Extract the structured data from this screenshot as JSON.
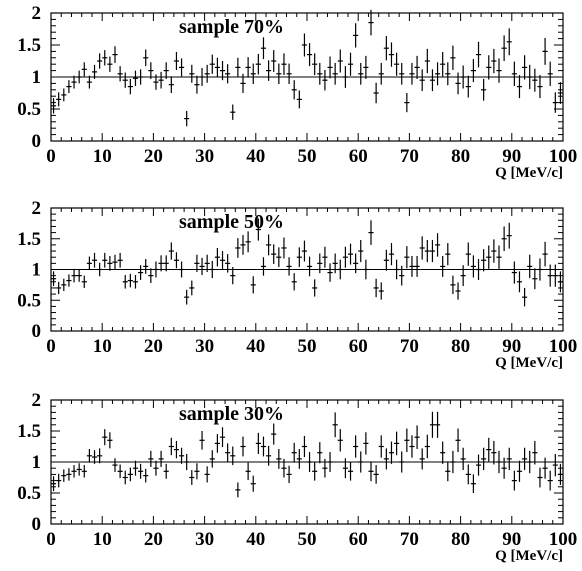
{
  "chart_data": [
    {
      "type": "scatter",
      "title": "sample 70%",
      "xlabel": "Q [MeV/c]",
      "ylabel": "",
      "xlim": [
        0,
        100
      ],
      "ylim": [
        0,
        2
      ],
      "xticks": [
        "0",
        "10",
        "20",
        "30",
        "40",
        "50",
        "60",
        "70",
        "80",
        "90",
        "100"
      ],
      "yticks": [
        "0",
        "0.5",
        "1",
        "1.5",
        "2"
      ],
      "reference_line": 1,
      "grid": false,
      "x": [
        0.5,
        1.5,
        2.5,
        3.5,
        4.5,
        5.5,
        6.5,
        7.5,
        8.5,
        9.5,
        10.5,
        11.5,
        12.5,
        13.5,
        14.5,
        15.5,
        16.5,
        17.5,
        18.5,
        19.5,
        20.5,
        21.5,
        22.5,
        23.5,
        24.5,
        25.5,
        26.5,
        27.5,
        28.5,
        29.5,
        30.5,
        31.5,
        32.5,
        33.5,
        34.5,
        35.5,
        36.5,
        37.5,
        38.5,
        39.5,
        40.5,
        41.5,
        42.5,
        43.5,
        44.5,
        45.5,
        46.5,
        47.5,
        48.5,
        49.5,
        50.5,
        51.5,
        52.5,
        53.5,
        54.5,
        55.5,
        56.5,
        57.5,
        58.5,
        59.5,
        60.5,
        61.5,
        62.5,
        63.5,
        64.5,
        65.5,
        66.5,
        67.5,
        68.5,
        69.5,
        70.5,
        71.5,
        72.5,
        73.5,
        74.5,
        75.5,
        76.5,
        77.5,
        78.5,
        79.5,
        80.5,
        81.5,
        82.5,
        83.5,
        84.5,
        85.5,
        86.5,
        87.5,
        88.5,
        89.5,
        90.5,
        91.5,
        92.5,
        93.5,
        94.5,
        95.5,
        96.5,
        97.5,
        98.5,
        99.5
      ],
      "y": [
        0.55,
        0.65,
        0.72,
        0.85,
        0.92,
        1.0,
        1.12,
        0.92,
        1.08,
        1.25,
        1.3,
        1.2,
        1.35,
        1.05,
        0.95,
        0.85,
        0.98,
        1.0,
        1.3,
        1.1,
        0.92,
        0.95,
        1.1,
        0.88,
        1.25,
        1.15,
        0.35,
        1.05,
        0.88,
        1.0,
        1.05,
        1.2,
        1.15,
        1.1,
        1.05,
        0.45,
        1.15,
        0.9,
        1.15,
        1.05,
        1.2,
        1.45,
        1.1,
        1.25,
        1.05,
        1.2,
        1.05,
        0.8,
        0.65,
        1.5,
        1.35,
        1.2,
        1.05,
        0.95,
        1.15,
        1.05,
        1.25,
        1.0,
        1.2,
        1.65,
        1.05,
        1.15,
        1.85,
        0.75,
        1.05,
        1.45,
        1.35,
        1.2,
        1.05,
        0.6,
        1.05,
        1.15,
        0.95,
        1.25,
        0.95,
        1.05,
        1.2,
        1.05,
        1.3,
        0.9,
        1.0,
        0.85,
        1.1,
        1.35,
        0.8,
        1.15,
        1.25,
        1.1,
        1.45,
        1.55,
        1.05,
        0.85,
        1.15,
        1.0,
        0.95,
        0.85,
        1.4,
        1.05,
        0.6,
        0.75
      ],
      "yerr": [
        0.12,
        0.11,
        0.1,
        0.1,
        0.1,
        0.1,
        0.11,
        0.1,
        0.11,
        0.12,
        0.12,
        0.12,
        0.13,
        0.12,
        0.12,
        0.12,
        0.12,
        0.12,
        0.13,
        0.13,
        0.12,
        0.13,
        0.13,
        0.13,
        0.14,
        0.14,
        0.12,
        0.14,
        0.14,
        0.14,
        0.14,
        0.15,
        0.15,
        0.15,
        0.15,
        0.12,
        0.15,
        0.15,
        0.16,
        0.16,
        0.16,
        0.17,
        0.16,
        0.17,
        0.16,
        0.17,
        0.16,
        0.15,
        0.14,
        0.18,
        0.18,
        0.17,
        0.17,
        0.16,
        0.17,
        0.17,
        0.18,
        0.17,
        0.18,
        0.19,
        0.17,
        0.18,
        0.2,
        0.16,
        0.17,
        0.19,
        0.19,
        0.18,
        0.17,
        0.15,
        0.17,
        0.18,
        0.17,
        0.19,
        0.17,
        0.18,
        0.19,
        0.18,
        0.19,
        0.17,
        0.18,
        0.17,
        0.18,
        0.2,
        0.17,
        0.19,
        0.19,
        0.19,
        0.2,
        0.21,
        0.19,
        0.18,
        0.19,
        0.19,
        0.18,
        0.18,
        0.21,
        0.19,
        0.16,
        0.17
      ]
    },
    {
      "type": "scatter",
      "title": "sample 50%",
      "xlabel": "Q [MeV/c]",
      "ylabel": "",
      "xlim": [
        0,
        100
      ],
      "ylim": [
        0,
        2
      ],
      "xticks": [
        "0",
        "10",
        "20",
        "30",
        "40",
        "50",
        "60",
        "70",
        "80",
        "90",
        "100"
      ],
      "yticks": [
        "0",
        "0.5",
        "1",
        "1.5",
        "2"
      ],
      "reference_line": 1,
      "grid": false,
      "x": [
        0.5,
        1.5,
        2.5,
        3.5,
        4.5,
        5.5,
        6.5,
        7.5,
        8.5,
        9.5,
        10.5,
        11.5,
        12.5,
        13.5,
        14.5,
        15.5,
        16.5,
        17.5,
        18.5,
        19.5,
        20.5,
        21.5,
        22.5,
        23.5,
        24.5,
        25.5,
        26.5,
        27.5,
        28.5,
        29.5,
        30.5,
        31.5,
        32.5,
        33.5,
        34.5,
        35.5,
        36.5,
        37.5,
        38.5,
        39.5,
        40.5,
        41.5,
        42.5,
        43.5,
        44.5,
        45.5,
        46.5,
        47.5,
        48.5,
        49.5,
        50.5,
        51.5,
        52.5,
        53.5,
        54.5,
        55.5,
        56.5,
        57.5,
        58.5,
        59.5,
        60.5,
        61.5,
        62.5,
        63.5,
        64.5,
        65.5,
        66.5,
        67.5,
        68.5,
        69.5,
        70.5,
        71.5,
        72.5,
        73.5,
        74.5,
        75.5,
        76.5,
        77.5,
        78.5,
        79.5,
        80.5,
        81.5,
        82.5,
        83.5,
        84.5,
        85.5,
        86.5,
        87.5,
        88.5,
        89.5,
        90.5,
        91.5,
        92.5,
        93.5,
        94.5,
        95.5,
        96.5,
        97.5,
        98.5,
        99.5
      ],
      "y": [
        0.85,
        0.7,
        0.75,
        0.82,
        0.9,
        0.9,
        0.8,
        1.1,
        1.15,
        1.0,
        1.15,
        1.1,
        1.12,
        1.15,
        0.8,
        0.82,
        0.8,
        0.95,
        1.05,
        0.9,
        1.0,
        1.1,
        1.1,
        1.3,
        1.15,
        1.0,
        0.55,
        0.7,
        1.1,
        1.05,
        1.1,
        1.0,
        1.2,
        1.15,
        1.1,
        0.9,
        1.35,
        1.4,
        1.45,
        0.75,
        1.65,
        1.05,
        1.4,
        1.25,
        1.2,
        1.35,
        1.05,
        0.8,
        1.2,
        1.3,
        1.05,
        0.7,
        1.1,
        1.2,
        0.95,
        1.1,
        1.0,
        1.2,
        1.25,
        1.1,
        1.3,
        1.0,
        1.6,
        0.7,
        0.65,
        1.15,
        1.25,
        1.0,
        0.9,
        1.2,
        1.05,
        1.05,
        1.35,
        1.3,
        1.3,
        1.4,
        1.05,
        1.25,
        0.75,
        0.65,
        0.9,
        1.25,
        1.05,
        1.0,
        1.15,
        1.2,
        1.3,
        1.2,
        1.5,
        1.55,
        0.95,
        0.8,
        0.55,
        1.05,
        0.85,
        1.0,
        1.25,
        0.9,
        0.9,
        0.8
      ],
      "yerr": [
        0.12,
        0.1,
        0.1,
        0.1,
        0.11,
        0.1,
        0.1,
        0.11,
        0.12,
        0.11,
        0.12,
        0.12,
        0.12,
        0.12,
        0.11,
        0.11,
        0.11,
        0.12,
        0.12,
        0.12,
        0.13,
        0.13,
        0.13,
        0.14,
        0.13,
        0.13,
        0.12,
        0.12,
        0.14,
        0.14,
        0.14,
        0.14,
        0.15,
        0.15,
        0.15,
        0.14,
        0.16,
        0.16,
        0.17,
        0.14,
        0.18,
        0.15,
        0.17,
        0.16,
        0.16,
        0.17,
        0.15,
        0.14,
        0.16,
        0.17,
        0.16,
        0.14,
        0.16,
        0.17,
        0.15,
        0.16,
        0.16,
        0.17,
        0.17,
        0.16,
        0.18,
        0.16,
        0.2,
        0.15,
        0.14,
        0.17,
        0.18,
        0.16,
        0.16,
        0.18,
        0.17,
        0.17,
        0.19,
        0.18,
        0.18,
        0.19,
        0.17,
        0.18,
        0.15,
        0.14,
        0.17,
        0.19,
        0.18,
        0.17,
        0.18,
        0.19,
        0.19,
        0.19,
        0.2,
        0.21,
        0.18,
        0.17,
        0.15,
        0.19,
        0.17,
        0.18,
        0.2,
        0.18,
        0.18,
        0.17
      ]
    },
    {
      "type": "scatter",
      "title": "sample 30%",
      "xlabel": "Q [MeV/c]",
      "ylabel": "",
      "xlim": [
        0,
        100
      ],
      "ylim": [
        0,
        2
      ],
      "xticks": [
        "0",
        "10",
        "20",
        "30",
        "40",
        "50",
        "60",
        "70",
        "80",
        "90",
        "100"
      ],
      "yticks": [
        "0",
        "0.5",
        "1",
        "1.5",
        "2"
      ],
      "reference_line": 1,
      "grid": false,
      "x": [
        0.5,
        1.5,
        2.5,
        3.5,
        4.5,
        5.5,
        6.5,
        7.5,
        8.5,
        9.5,
        10.5,
        11.5,
        12.5,
        13.5,
        14.5,
        15.5,
        16.5,
        17.5,
        18.5,
        19.5,
        20.5,
        21.5,
        22.5,
        23.5,
        24.5,
        25.5,
        26.5,
        27.5,
        28.5,
        29.5,
        30.5,
        31.5,
        32.5,
        33.5,
        34.5,
        35.5,
        36.5,
        37.5,
        38.5,
        39.5,
        40.5,
        41.5,
        42.5,
        43.5,
        44.5,
        45.5,
        46.5,
        47.5,
        48.5,
        49.5,
        50.5,
        51.5,
        52.5,
        53.5,
        54.5,
        55.5,
        56.5,
        57.5,
        58.5,
        59.5,
        60.5,
        61.5,
        62.5,
        63.5,
        64.5,
        65.5,
        66.5,
        67.5,
        68.5,
        69.5,
        70.5,
        71.5,
        72.5,
        73.5,
        74.5,
        75.5,
        76.5,
        77.5,
        78.5,
        79.5,
        80.5,
        81.5,
        82.5,
        83.5,
        84.5,
        85.5,
        86.5,
        87.5,
        88.5,
        89.5,
        90.5,
        91.5,
        92.5,
        93.5,
        94.5,
        95.5,
        96.5,
        97.5,
        98.5,
        99.5
      ],
      "y": [
        0.65,
        0.7,
        0.78,
        0.8,
        0.85,
        0.88,
        0.85,
        1.1,
        1.08,
        1.1,
        1.4,
        1.35,
        0.95,
        0.85,
        0.75,
        0.8,
        0.9,
        0.85,
        0.78,
        1.05,
        0.9,
        1.05,
        0.85,
        1.25,
        1.2,
        1.1,
        1.0,
        0.75,
        0.85,
        1.35,
        0.8,
        1.05,
        1.3,
        1.4,
        1.15,
        1.1,
        0.55,
        1.25,
        0.85,
        0.65,
        1.3,
        1.25,
        1.1,
        1.45,
        1.05,
        0.9,
        0.8,
        1.15,
        1.05,
        1.25,
        1.0,
        0.85,
        1.15,
        0.9,
        1.0,
        1.6,
        1.35,
        0.9,
        0.85,
        1.25,
        1.0,
        1.3,
        0.85,
        0.8,
        1.25,
        1.05,
        1.15,
        1.3,
        1.0,
        1.35,
        1.25,
        1.4,
        1.05,
        1.25,
        1.6,
        1.6,
        1.15,
        0.85,
        1.0,
        1.35,
        1.05,
        0.8,
        0.65,
        0.95,
        1.05,
        1.2,
        1.15,
        1.0,
        0.9,
        1.05,
        0.7,
        0.85,
        1.05,
        1.0,
        1.15,
        0.75,
        0.9,
        0.7,
        0.95,
        0.8
      ],
      "yerr": [
        0.12,
        0.11,
        0.1,
        0.1,
        0.1,
        0.1,
        0.1,
        0.11,
        0.11,
        0.12,
        0.13,
        0.13,
        0.11,
        0.11,
        0.11,
        0.11,
        0.12,
        0.12,
        0.11,
        0.13,
        0.12,
        0.13,
        0.12,
        0.14,
        0.14,
        0.13,
        0.13,
        0.12,
        0.13,
        0.15,
        0.13,
        0.14,
        0.15,
        0.16,
        0.15,
        0.15,
        0.12,
        0.16,
        0.14,
        0.13,
        0.17,
        0.16,
        0.16,
        0.17,
        0.16,
        0.15,
        0.14,
        0.16,
        0.16,
        0.17,
        0.16,
        0.15,
        0.17,
        0.15,
        0.16,
        0.2,
        0.18,
        0.16,
        0.15,
        0.18,
        0.17,
        0.18,
        0.16,
        0.15,
        0.18,
        0.17,
        0.18,
        0.19,
        0.17,
        0.19,
        0.18,
        0.19,
        0.17,
        0.19,
        0.21,
        0.21,
        0.18,
        0.16,
        0.18,
        0.19,
        0.18,
        0.16,
        0.15,
        0.17,
        0.18,
        0.19,
        0.19,
        0.18,
        0.17,
        0.18,
        0.16,
        0.17,
        0.18,
        0.18,
        0.19,
        0.16,
        0.17,
        0.16,
        0.18,
        0.17
      ]
    }
  ]
}
